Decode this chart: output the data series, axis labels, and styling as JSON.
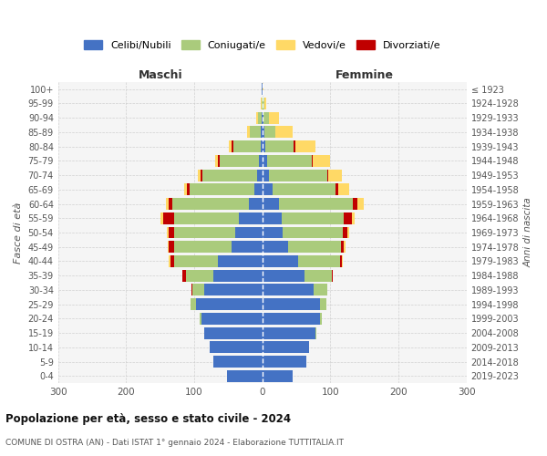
{
  "age_groups": [
    "0-4",
    "5-9",
    "10-14",
    "15-19",
    "20-24",
    "25-29",
    "30-34",
    "35-39",
    "40-44",
    "45-49",
    "50-54",
    "55-59",
    "60-64",
    "65-69",
    "70-74",
    "75-79",
    "80-84",
    "85-89",
    "90-94",
    "95-99",
    "100+"
  ],
  "birth_years": [
    "2019-2023",
    "2014-2018",
    "2009-2013",
    "2004-2008",
    "1999-2003",
    "1994-1998",
    "1989-1993",
    "1984-1988",
    "1979-1983",
    "1974-1978",
    "1969-1973",
    "1964-1968",
    "1959-1963",
    "1954-1958",
    "1949-1953",
    "1944-1948",
    "1939-1943",
    "1934-1938",
    "1929-1933",
    "1924-1928",
    "≤ 1923"
  ],
  "males": {
    "celibi": [
      52,
      72,
      78,
      85,
      90,
      98,
      85,
      72,
      65,
      45,
      40,
      35,
      20,
      12,
      8,
      5,
      3,
      2,
      1,
      0,
      1
    ],
    "coniugati": [
      0,
      0,
      0,
      0,
      2,
      7,
      18,
      40,
      65,
      85,
      90,
      95,
      112,
      95,
      80,
      58,
      40,
      16,
      5,
      1,
      0
    ],
    "vedovi": [
      0,
      0,
      0,
      0,
      0,
      1,
      0,
      1,
      2,
      2,
      3,
      4,
      4,
      4,
      4,
      4,
      4,
      4,
      3,
      1,
      0
    ],
    "divorziati": [
      0,
      0,
      0,
      0,
      0,
      0,
      1,
      5,
      5,
      7,
      7,
      16,
      5,
      4,
      3,
      2,
      2,
      0,
      0,
      0,
      0
    ]
  },
  "females": {
    "nubili": [
      45,
      65,
      68,
      78,
      85,
      85,
      75,
      62,
      52,
      38,
      30,
      28,
      25,
      15,
      10,
      7,
      4,
      3,
      2,
      1,
      1
    ],
    "coniugate": [
      0,
      0,
      0,
      1,
      3,
      9,
      20,
      40,
      62,
      78,
      88,
      92,
      108,
      92,
      85,
      65,
      42,
      16,
      8,
      2,
      0
    ],
    "vedove": [
      0,
      0,
      0,
      0,
      0,
      0,
      0,
      0,
      1,
      2,
      3,
      4,
      9,
      16,
      20,
      26,
      30,
      26,
      14,
      3,
      1
    ],
    "divorziate": [
      0,
      0,
      0,
      0,
      0,
      0,
      1,
      2,
      3,
      4,
      7,
      11,
      7,
      4,
      2,
      2,
      2,
      0,
      0,
      0,
      0
    ]
  },
  "colors": {
    "celibi_nubili": "#4472C4",
    "coniugati_e": "#AACB7C",
    "vedovi_e": "#FFD966",
    "divorziati_e": "#C00000"
  },
  "xlim": 300,
  "title": "Popolazione per età, sesso e stato civile - 2024",
  "subtitle": "COMUNE DI OSTRA (AN) - Dati ISTAT 1° gennaio 2024 - Elaborazione TUTTITALIA.IT",
  "xlabel_left": "Maschi",
  "xlabel_right": "Femmine",
  "ylabel": "Fasce di età",
  "ylabel_right": "Anni di nascita",
  "bg_color": "#f5f5f5",
  "grid_color": "#cccccc"
}
